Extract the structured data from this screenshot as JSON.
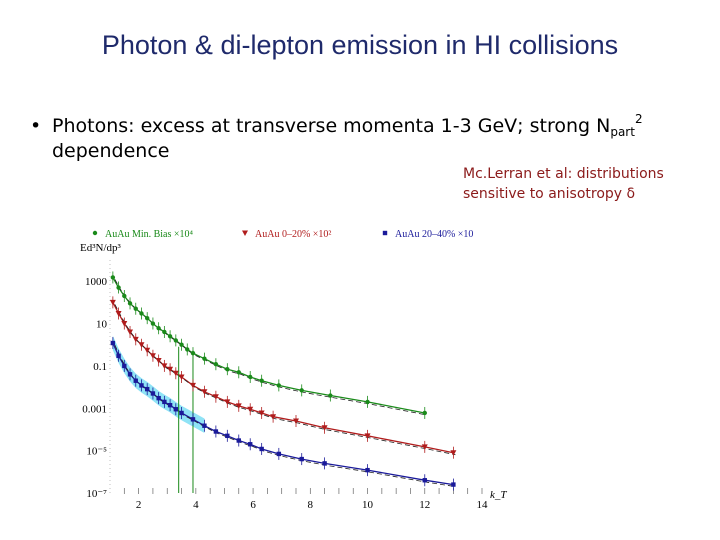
{
  "slide": {
    "title": "Photon & di-lepton emission in HI collisions",
    "bullet_main": "Photons: excess at transverse momenta 1-3 GeV; strong N",
    "bullet_sub": "part",
    "bullet_sup": "2",
    "bullet_line2": "dependence",
    "note_line1": "Mc.Lerran et al: distributions",
    "note_line2": "sensitive to anisotropy δ"
  },
  "chart_data": {
    "type": "scatter",
    "title": "",
    "xlabel": "k_T",
    "ylabel": "Ed³N/dp³",
    "xlim": [
      1,
      14
    ],
    "ylim": [
      1e-07,
      10000
    ],
    "log_y": true,
    "x_tick_labels": [
      "2",
      "4",
      "6",
      "8",
      "10",
      "12",
      "14"
    ],
    "x_ticks": [
      2,
      4,
      6,
      8,
      10,
      12,
      14
    ],
    "y_tick_labels": [
      "1000",
      "10",
      "0.1",
      "0.001",
      "10⁻⁵",
      "10⁻⁷"
    ],
    "y_ticks": [
      1000,
      10,
      0.1,
      0.001,
      1e-05,
      1e-07
    ],
    "legend_placement": "top",
    "series": [
      {
        "name": "AuAu Min. Bias ×10⁴",
        "color": "#1a8a1a",
        "marker": "circle",
        "x": [
          1.1,
          1.3,
          1.5,
          1.7,
          1.9,
          2.1,
          2.3,
          2.5,
          2.7,
          2.9,
          3.1,
          3.3,
          3.5,
          3.7,
          3.9,
          4.3,
          4.7,
          5.1,
          5.5,
          5.9,
          6.3,
          6.9,
          7.7,
          8.7,
          10.0,
          12.0
        ],
        "y": [
          1500,
          500,
          200,
          90,
          50,
          30,
          18,
          10,
          6,
          4,
          2.5,
          1.6,
          1.0,
          0.6,
          0.4,
          0.22,
          0.12,
          0.07,
          0.05,
          0.03,
          0.02,
          0.012,
          0.007,
          0.004,
          0.002,
          0.0006
        ]
      },
      {
        "name": "AuAu 0–20% ×10²",
        "color": "#b01c1c",
        "marker": "triangle-down",
        "x": [
          1.1,
          1.3,
          1.5,
          1.7,
          1.9,
          2.1,
          2.3,
          2.5,
          2.7,
          2.9,
          3.1,
          3.3,
          3.5,
          3.9,
          4.3,
          4.7,
          5.1,
          5.5,
          5.9,
          6.3,
          6.7,
          7.5,
          8.5,
          10.0,
          12.0,
          13.0
        ],
        "y": [
          100,
          30,
          10,
          4,
          1.8,
          1.0,
          0.55,
          0.3,
          0.18,
          0.1,
          0.07,
          0.045,
          0.03,
          0.012,
          0.006,
          0.0035,
          0.002,
          0.0013,
          0.0009,
          0.0006,
          0.0004,
          0.00025,
          0.00012,
          5e-05,
          1.5e-05,
          8e-06
        ]
      },
      {
        "name": "AuAu 20–40% ×10",
        "color": "#1a1a9a",
        "marker": "square",
        "x": [
          1.1,
          1.3,
          1.5,
          1.7,
          1.9,
          2.1,
          2.3,
          2.5,
          2.7,
          2.9,
          3.1,
          3.3,
          3.5,
          3.9,
          4.3,
          4.7,
          5.1,
          5.5,
          5.9,
          6.3,
          6.9,
          7.7,
          8.5,
          10.0,
          12.0,
          13.0
        ],
        "y": [
          1.2,
          0.3,
          0.1,
          0.04,
          0.02,
          0.012,
          0.008,
          0.005,
          0.003,
          0.002,
          0.0014,
          0.0009,
          0.0006,
          0.0003,
          0.00015,
          8e-05,
          5e-05,
          3e-05,
          2e-05,
          1.2e-05,
          7e-06,
          4e-06,
          2.5e-06,
          1.2e-06,
          4e-07,
          2.5e-07
        ]
      }
    ]
  }
}
